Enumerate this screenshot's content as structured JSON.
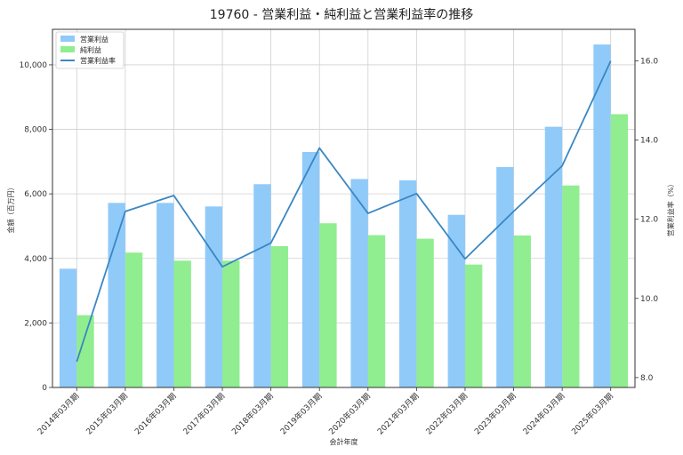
{
  "chart_data": {
    "type": "bar",
    "title": "19760 - 営業利益・純利益と営業利益率の推移",
    "xlabel": "会計年度",
    "ylabel": "金額（百万円）",
    "y2label": "営業利益率（%）",
    "categories": [
      "2014年03月期",
      "2015年03月期",
      "2016年03月期",
      "2017年03月期",
      "2018年03月期",
      "2019年03月期",
      "2020年03月期",
      "2021年03月期",
      "2022年03月期",
      "2023年03月期",
      "2024年03月期",
      "2025年03月期"
    ],
    "series": [
      {
        "name": "営業利益",
        "kind": "bar",
        "axis": "left",
        "color": "#90caf9",
        "values": [
          3680,
          5720,
          5720,
          5610,
          6300,
          7300,
          6460,
          6420,
          5350,
          6830,
          8080,
          10630
        ]
      },
      {
        "name": "純利益",
        "kind": "bar",
        "axis": "left",
        "color": "#90ee90",
        "values": [
          2240,
          4180,
          3930,
          3930,
          4380,
          5090,
          4720,
          4610,
          3810,
          4710,
          6260,
          8470
        ]
      },
      {
        "name": "営業利益率",
        "kind": "line",
        "axis": "right",
        "color": "#3a87c3",
        "values": [
          8.4,
          12.2,
          12.6,
          10.8,
          11.4,
          13.8,
          12.15,
          12.65,
          11.0,
          12.2,
          13.35,
          16.0
        ]
      }
    ],
    "ylim": [
      0,
      11100
    ],
    "y_ticks": [
      0,
      2000,
      4000,
      6000,
      8000,
      10000
    ],
    "y_tick_labels": [
      "0",
      "2,000",
      "4,000",
      "6,000",
      "8,000",
      "10,000"
    ],
    "y2lim": [
      7.75,
      16.8
    ],
    "y2_ticks": [
      8,
      10,
      12,
      14,
      16
    ],
    "y2_tick_labels": [
      "8.0",
      "10.0",
      "12.0",
      "14.0",
      "16.0"
    ],
    "grid": true,
    "legend": "top-left"
  }
}
